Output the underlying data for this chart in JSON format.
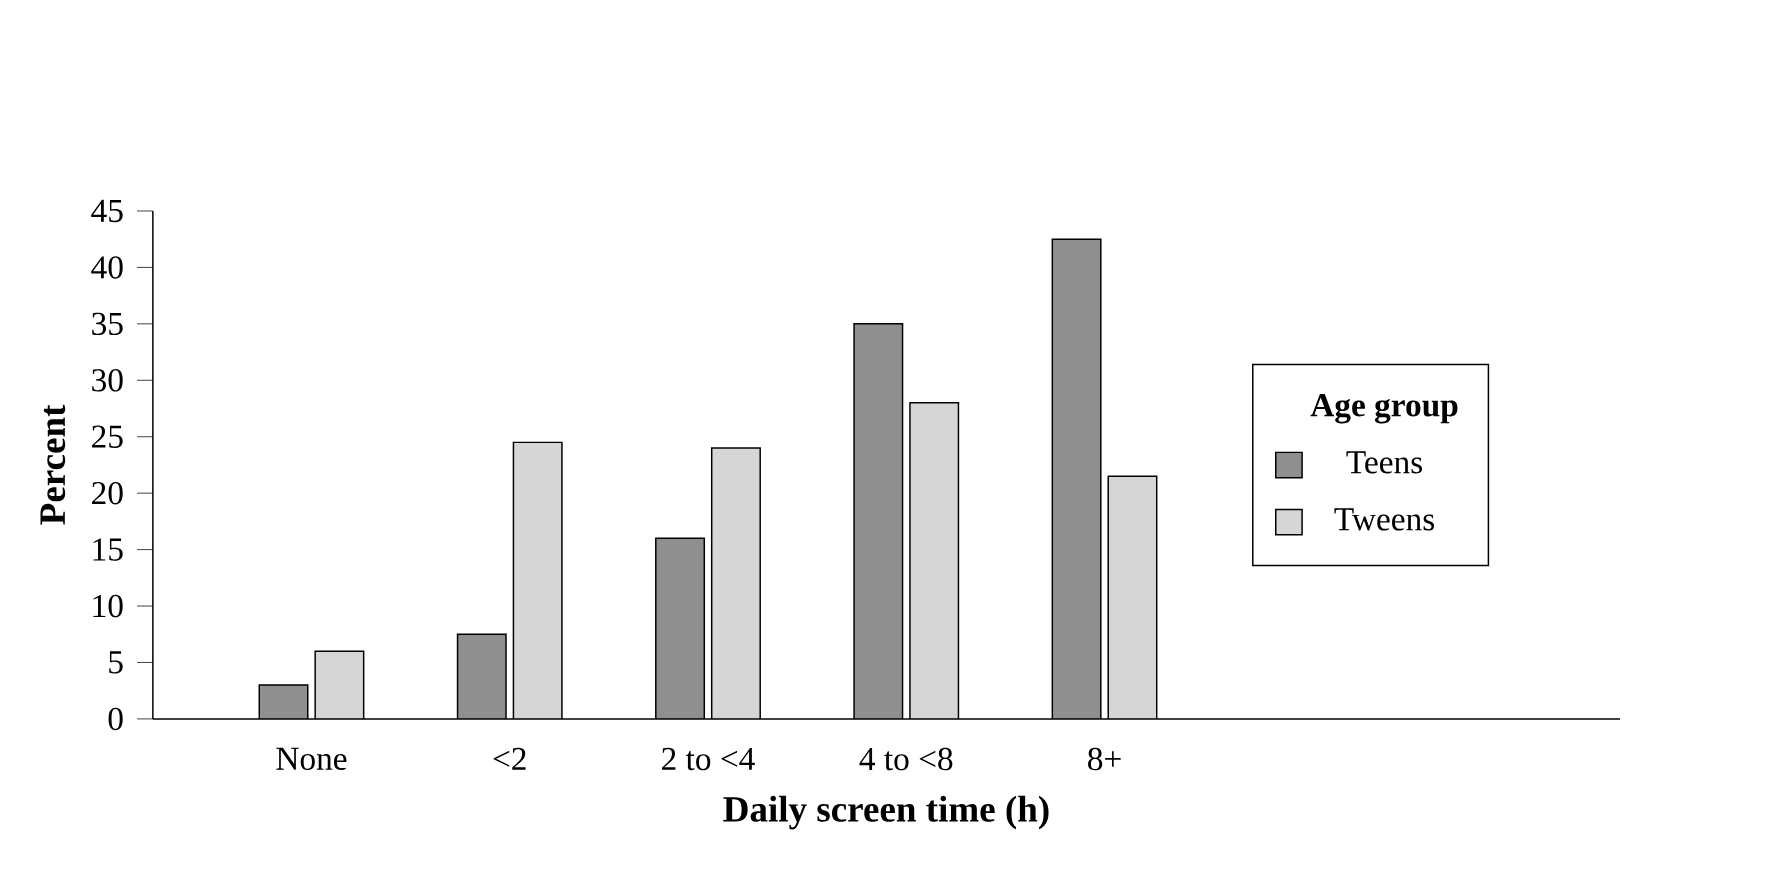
{
  "chart_data": {
    "type": "bar",
    "xlabel": "Daily screen time (h)",
    "ylabel": "Percent",
    "legend_title": "Age group",
    "categories": [
      "None",
      "<2",
      "2 to <4",
      "4 to <8",
      "8+"
    ],
    "series": [
      {
        "name": "Teens",
        "color": "#8f8f8f",
        "values": [
          3,
          7.5,
          16,
          35,
          42.5
        ]
      },
      {
        "name": "Tweens",
        "color": "#d6d6d6",
        "values": [
          6,
          24.5,
          24,
          28,
          21.5
        ]
      }
    ],
    "ylim": [
      0,
      45
    ],
    "yticks": [
      0,
      5,
      10,
      15,
      20,
      25,
      30,
      35,
      40,
      45
    ],
    "grid": false,
    "legend": "right"
  }
}
